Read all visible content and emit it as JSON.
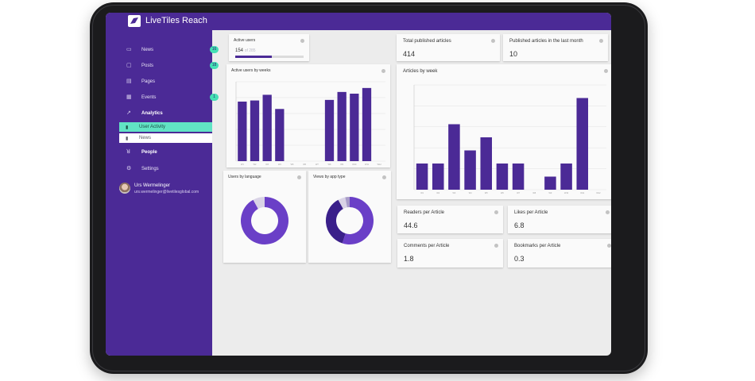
{
  "app": {
    "title": "LiveTiles Reach"
  },
  "sidebar": {
    "items": [
      {
        "label": "News",
        "icon": "news-icon",
        "badge": "16"
      },
      {
        "label": "Posts",
        "icon": "posts-icon",
        "badge": "18"
      },
      {
        "label": "Pages",
        "icon": "pages-icon",
        "badge": ""
      },
      {
        "label": "Events",
        "icon": "calendar-icon",
        "badge": "1"
      },
      {
        "label": "Analytics",
        "icon": "analytics-icon",
        "badge": ""
      }
    ],
    "sub_items": [
      {
        "label": "User Activity"
      },
      {
        "label": "News"
      }
    ],
    "items_after": [
      {
        "label": "People",
        "icon": "people-icon"
      },
      {
        "label": "Settings",
        "icon": "gear-icon"
      }
    ],
    "user": {
      "name": "Urs Wermelinger",
      "email": "urs.wermelinger@livetilesglobal.com"
    }
  },
  "active_users": {
    "title": "Active users",
    "value": "154",
    "total": "of 285",
    "fraction": 0.54
  },
  "stats": {
    "total_published": {
      "title": "Total published articles",
      "value": "414"
    },
    "published_last_month": {
      "title": "Published articles in the last month",
      "value": "10"
    },
    "readers": {
      "title": "Readers per Article",
      "value": "44.6"
    },
    "likes": {
      "title": "Likes per Article",
      "value": "6.8"
    },
    "comments": {
      "title": "Comments per Article",
      "value": "1.8"
    },
    "bookmarks": {
      "title": "Bookmarks per Article",
      "value": "0.3"
    }
  },
  "chart_data": [
    {
      "type": "bar",
      "title": "Active users by weeks",
      "categories": [
        "W1",
        "W2",
        "W3",
        "W4",
        "W5",
        "W6",
        "W7",
        "W8",
        "W9",
        "W10",
        "W11",
        "W12"
      ],
      "values": [
        105,
        107,
        117,
        92,
        0,
        0,
        0,
        108,
        122,
        119,
        129,
        0
      ],
      "ylim": [
        0,
        140
      ],
      "grid": true,
      "color": "#4b2a96"
    },
    {
      "type": "bar",
      "title": "Articles by week",
      "categories": [
        "W1",
        "W2",
        "W3",
        "W4",
        "W5",
        "W6",
        "W7",
        "W8",
        "W9",
        "W10",
        "W11",
        "W12"
      ],
      "values": [
        2,
        2,
        5,
        3,
        4,
        2,
        2,
        0,
        1,
        2,
        7,
        0
      ],
      "ylim": [
        0,
        8
      ],
      "grid": true,
      "color": "#4b2a96"
    },
    {
      "type": "pie",
      "title": "Users by language",
      "slices": [
        0.92,
        0.08
      ],
      "colors": [
        "#6a3fc7",
        "#d9d3e6"
      ]
    },
    {
      "type": "pie",
      "title": "Views by app type",
      "slices": [
        0.55,
        0.37,
        0.05,
        0.03
      ],
      "colors": [
        "#6a3fc7",
        "#3a1f8a",
        "#d9d3e6",
        "#a89cc9"
      ]
    }
  ]
}
